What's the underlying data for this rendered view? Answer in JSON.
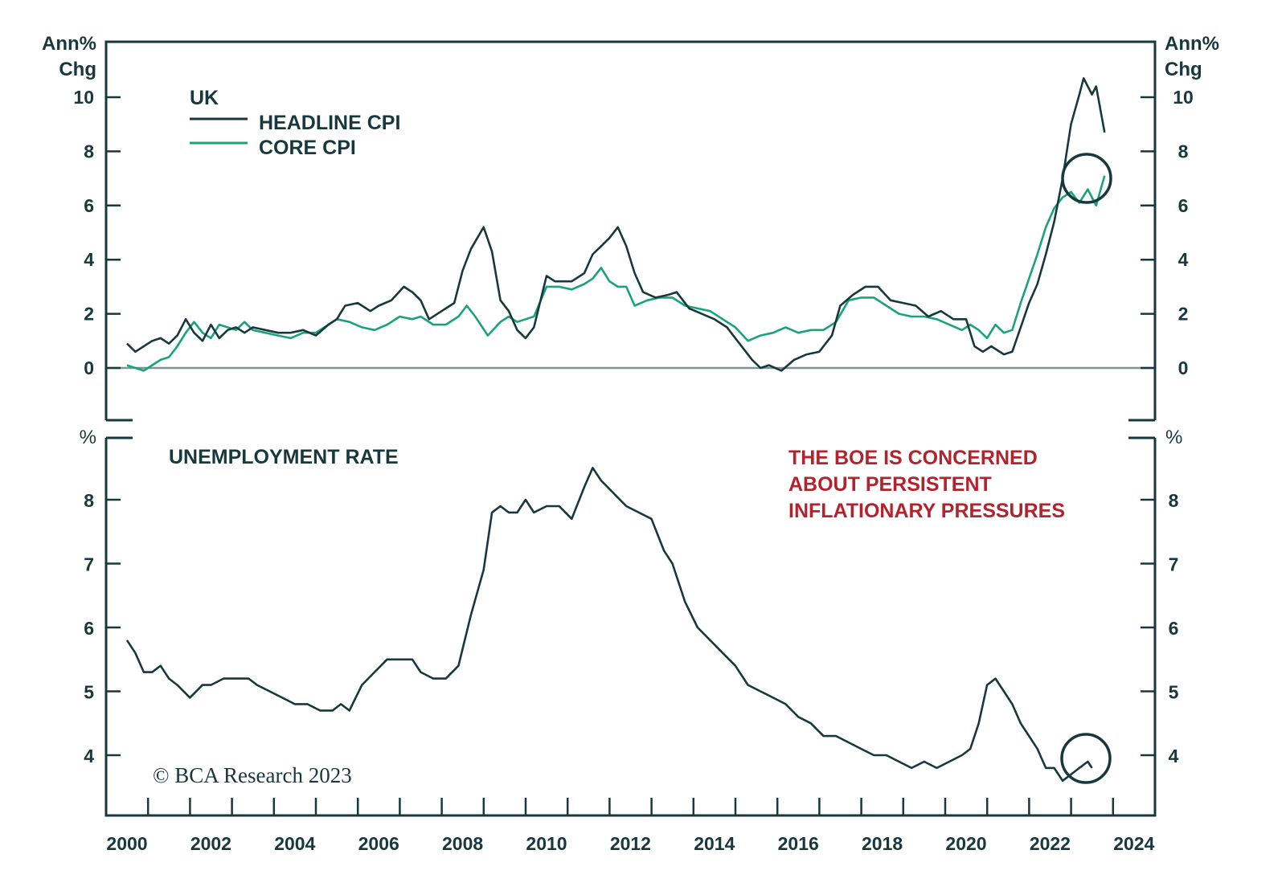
{
  "chart_data": [
    {
      "type": "line",
      "panel": "top",
      "title": "UK",
      "ylabel_left": "Ann% Chg",
      "ylabel_right": "Ann% Chg",
      "ylim": [
        -2,
        12
      ],
      "yticks": [
        0,
        2,
        4,
        6,
        8,
        10
      ],
      "grid": false,
      "zero_line": true,
      "legend_placement": "top-left",
      "legend": [
        {
          "name": "HEADLINE CPI",
          "color": "#17383d"
        },
        {
          "name": "CORE CPI",
          "color": "#1aa37a"
        }
      ],
      "series": [
        {
          "name": "HEADLINE CPI",
          "color": "#17383d",
          "x": [
            2000.0,
            2000.2,
            2000.4,
            2000.6,
            2000.8,
            2001.0,
            2001.2,
            2001.4,
            2001.6,
            2001.8,
            2002.0,
            2002.2,
            2002.4,
            2002.6,
            2002.8,
            2003.0,
            2003.3,
            2003.6,
            2003.9,
            2004.2,
            2004.5,
            2004.8,
            2005.0,
            2005.2,
            2005.5,
            2005.8,
            2006.0,
            2006.3,
            2006.6,
            2006.8,
            2007.0,
            2007.2,
            2007.5,
            2007.8,
            2008.0,
            2008.2,
            2008.5,
            2008.7,
            2008.9,
            2009.1,
            2009.3,
            2009.5,
            2009.7,
            2010.0,
            2010.2,
            2010.4,
            2010.6,
            2010.9,
            2011.1,
            2011.3,
            2011.5,
            2011.7,
            2011.9,
            2012.1,
            2012.3,
            2012.6,
            2012.9,
            2013.1,
            2013.4,
            2013.7,
            2014.0,
            2014.3,
            2014.6,
            2014.9,
            2015.1,
            2015.3,
            2015.6,
            2015.9,
            2016.2,
            2016.5,
            2016.8,
            2017.0,
            2017.3,
            2017.6,
            2017.9,
            2018.2,
            2018.5,
            2018.8,
            2019.1,
            2019.4,
            2019.7,
            2020.0,
            2020.2,
            2020.4,
            2020.6,
            2020.9,
            2021.1,
            2021.3,
            2021.5,
            2021.7,
            2021.9,
            2022.1,
            2022.3,
            2022.5,
            2022.7,
            2022.8,
            2023.0,
            2023.1,
            2023.3
          ],
          "values": [
            0.9,
            0.6,
            0.8,
            1.0,
            1.1,
            0.9,
            1.2,
            1.8,
            1.3,
            1.0,
            1.6,
            1.1,
            1.4,
            1.5,
            1.3,
            1.5,
            1.4,
            1.3,
            1.3,
            1.4,
            1.2,
            1.6,
            1.8,
            2.3,
            2.4,
            2.1,
            2.3,
            2.5,
            3.0,
            2.8,
            2.5,
            1.8,
            2.1,
            2.4,
            3.6,
            4.4,
            5.2,
            4.3,
            2.5,
            2.1,
            1.4,
            1.1,
            1.5,
            3.4,
            3.2,
            3.2,
            3.2,
            3.5,
            4.2,
            4.5,
            4.8,
            5.2,
            4.5,
            3.5,
            2.8,
            2.6,
            2.7,
            2.8,
            2.2,
            2.0,
            1.8,
            1.5,
            0.9,
            0.3,
            0.0,
            0.1,
            -0.1,
            0.3,
            0.5,
            0.6,
            1.2,
            2.3,
            2.7,
            3.0,
            3.0,
            2.5,
            2.4,
            2.3,
            1.9,
            2.1,
            1.8,
            1.8,
            0.8,
            0.6,
            0.8,
            0.5,
            0.6,
            1.5,
            2.4,
            3.1,
            4.2,
            5.4,
            7.0,
            9.0,
            10.1,
            10.7,
            10.1,
            10.4,
            8.7
          ]
        },
        {
          "name": "CORE CPI",
          "color": "#1aa37a",
          "x": [
            2000.0,
            2000.2,
            2000.4,
            2000.6,
            2000.8,
            2001.0,
            2001.2,
            2001.4,
            2001.6,
            2001.8,
            2002.0,
            2002.2,
            2002.4,
            2002.6,
            2002.8,
            2003.0,
            2003.3,
            2003.6,
            2003.9,
            2004.2,
            2004.5,
            2004.8,
            2005.0,
            2005.3,
            2005.6,
            2005.9,
            2006.2,
            2006.5,
            2006.8,
            2007.0,
            2007.3,
            2007.6,
            2007.9,
            2008.1,
            2008.3,
            2008.6,
            2008.9,
            2009.1,
            2009.3,
            2009.5,
            2009.7,
            2010.0,
            2010.3,
            2010.6,
            2010.9,
            2011.1,
            2011.3,
            2011.5,
            2011.7,
            2011.9,
            2012.1,
            2012.4,
            2012.7,
            2013.0,
            2013.3,
            2013.6,
            2013.9,
            2014.2,
            2014.5,
            2014.8,
            2015.1,
            2015.4,
            2015.7,
            2016.0,
            2016.3,
            2016.6,
            2016.9,
            2017.2,
            2017.5,
            2017.8,
            2018.1,
            2018.4,
            2018.7,
            2019.0,
            2019.3,
            2019.6,
            2019.9,
            2020.1,
            2020.3,
            2020.5,
            2020.7,
            2020.9,
            2021.1,
            2021.3,
            2021.5,
            2021.7,
            2021.9,
            2022.1,
            2022.3,
            2022.5,
            2022.7,
            2022.9,
            2023.1,
            2023.3
          ],
          "values": [
            0.1,
            0.0,
            -0.1,
            0.1,
            0.3,
            0.4,
            0.8,
            1.3,
            1.7,
            1.3,
            1.1,
            1.6,
            1.5,
            1.4,
            1.7,
            1.4,
            1.3,
            1.2,
            1.1,
            1.3,
            1.3,
            1.6,
            1.8,
            1.7,
            1.5,
            1.4,
            1.6,
            1.9,
            1.8,
            1.9,
            1.6,
            1.6,
            1.9,
            2.3,
            1.9,
            1.2,
            1.7,
            1.9,
            1.7,
            1.8,
            1.9,
            3.0,
            3.0,
            2.9,
            3.1,
            3.3,
            3.7,
            3.2,
            3.0,
            3.0,
            2.3,
            2.5,
            2.6,
            2.6,
            2.3,
            2.2,
            2.1,
            1.8,
            1.5,
            1.0,
            1.2,
            1.3,
            1.5,
            1.3,
            1.4,
            1.4,
            1.7,
            2.5,
            2.6,
            2.6,
            2.3,
            2.0,
            1.9,
            1.9,
            1.8,
            1.6,
            1.4,
            1.6,
            1.4,
            1.1,
            1.6,
            1.3,
            1.4,
            2.4,
            3.3,
            4.2,
            5.2,
            5.9,
            6.3,
            6.5,
            6.1,
            6.6,
            6.0,
            7.1
          ]
        }
      ]
    },
    {
      "type": "line",
      "panel": "bottom",
      "title": "UNEMPLOYMENT RATE",
      "ylabel_left": "%",
      "ylabel_right": "%",
      "ylim": [
        3.0,
        8.95
      ],
      "yticks": [
        4,
        5,
        6,
        7,
        8
      ],
      "grid": false,
      "xlim": [
        2000,
        2024
      ],
      "xticks": [
        "2000",
        "2002",
        "2004",
        "2006",
        "2008",
        "2010",
        "2012",
        "2014",
        "2016",
        "2018",
        "2020",
        "2022",
        "2024"
      ],
      "series": [
        {
          "name": "UNEMPLOYMENT RATE",
          "color": "#17383d",
          "x": [
            2000.0,
            2000.2,
            2000.4,
            2000.6,
            2000.8,
            2001.0,
            2001.2,
            2001.5,
            2001.8,
            2002.0,
            2002.3,
            2002.6,
            2002.9,
            2003.1,
            2003.4,
            2003.7,
            2004.0,
            2004.3,
            2004.6,
            2004.9,
            2005.1,
            2005.3,
            2005.6,
            2005.9,
            2006.2,
            2006.5,
            2006.8,
            2007.0,
            2007.3,
            2007.6,
            2007.9,
            2008.2,
            2008.5,
            2008.7,
            2008.9,
            2009.1,
            2009.3,
            2009.5,
            2009.7,
            2010.0,
            2010.3,
            2010.6,
            2010.9,
            2011.1,
            2011.3,
            2011.6,
            2011.9,
            2012.2,
            2012.5,
            2012.8,
            2013.0,
            2013.3,
            2013.6,
            2013.9,
            2014.2,
            2014.5,
            2014.8,
            2015.1,
            2015.4,
            2015.7,
            2016.0,
            2016.3,
            2016.6,
            2016.9,
            2017.2,
            2017.5,
            2017.8,
            2018.1,
            2018.4,
            2018.7,
            2019.0,
            2019.3,
            2019.6,
            2019.9,
            2020.1,
            2020.3,
            2020.5,
            2020.7,
            2020.9,
            2021.1,
            2021.3,
            2021.5,
            2021.7,
            2021.9,
            2022.1,
            2022.3,
            2022.5,
            2022.7,
            2022.9,
            2023.0
          ],
          "values": [
            5.8,
            5.6,
            5.3,
            5.3,
            5.4,
            5.2,
            5.1,
            4.9,
            5.1,
            5.1,
            5.2,
            5.2,
            5.2,
            5.1,
            5.0,
            4.9,
            4.8,
            4.8,
            4.7,
            4.7,
            4.8,
            4.7,
            5.1,
            5.3,
            5.5,
            5.5,
            5.5,
            5.3,
            5.2,
            5.2,
            5.4,
            6.2,
            6.9,
            7.8,
            7.9,
            7.8,
            7.8,
            8.0,
            7.8,
            7.9,
            7.9,
            7.7,
            8.2,
            8.5,
            8.3,
            8.1,
            7.9,
            7.8,
            7.7,
            7.2,
            7.0,
            6.4,
            6.0,
            5.8,
            5.6,
            5.4,
            5.1,
            5.0,
            4.9,
            4.8,
            4.6,
            4.5,
            4.3,
            4.3,
            4.2,
            4.1,
            4.0,
            4.0,
            3.9,
            3.8,
            3.9,
            3.8,
            3.9,
            4.0,
            4.1,
            4.5,
            5.1,
            5.2,
            5.0,
            4.8,
            4.5,
            4.3,
            4.1,
            3.8,
            3.8,
            3.6,
            3.7,
            3.8,
            3.9,
            3.8
          ]
        }
      ]
    }
  ],
  "top_panel": {
    "ylabel_left_line1": "Ann%",
    "ylabel_left_line2": "Chg",
    "ylabel_right_line1": "Ann%",
    "ylabel_right_line2": "Chg",
    "tick_labels": [
      "0",
      "2",
      "4",
      "6",
      "8",
      "10"
    ],
    "legend_title": "UK",
    "legend_headline": "HEADLINE CPI",
    "legend_core": "CORE CPI"
  },
  "bottom_panel": {
    "ylabel_left": "%",
    "ylabel_right": "%",
    "tick_labels": [
      "4",
      "5",
      "6",
      "7",
      "8"
    ],
    "title": "UNEMPLOYMENT RATE",
    "annotation_line1": "THE BOE IS CONCERNED",
    "annotation_line2": "ABOUT PERSISTENT",
    "annotation_line3": "INFLATIONARY PRESSURES",
    "copyright": "© BCA Research 2023"
  },
  "x_axis": {
    "labels": [
      "2000",
      "2002",
      "2004",
      "2006",
      "2008",
      "2010",
      "2012",
      "2014",
      "2016",
      "2018",
      "2020",
      "2022",
      "2024"
    ]
  },
  "colors": {
    "headline": "#17383d",
    "core": "#1aa37a",
    "annotation": "#b3232e",
    "axis": "#17383d"
  }
}
